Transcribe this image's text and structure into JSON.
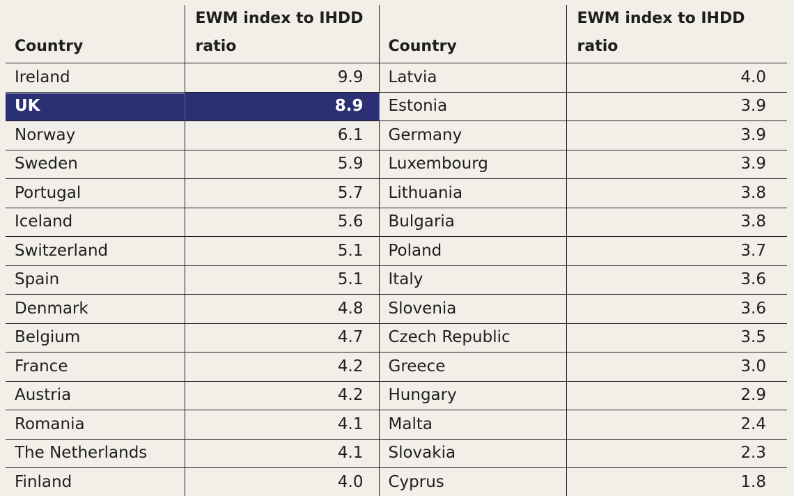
{
  "header": {
    "country_label": "Country",
    "ratio_label_line1": "EWM index to IHDD",
    "ratio_label_line2": "ratio"
  },
  "left_rows": [
    {
      "country": "Ireland",
      "value": "9.9"
    },
    {
      "country": "UK",
      "value": "8.9",
      "highlighted": true
    },
    {
      "country": "Norway",
      "value": "6.1"
    },
    {
      "country": "Sweden",
      "value": "5.9"
    },
    {
      "country": "Portugal",
      "value": "5.7"
    },
    {
      "country": "Iceland",
      "value": "5.6"
    },
    {
      "country": "Switzerland",
      "value": "5.1"
    },
    {
      "country": "Spain",
      "value": "5.1"
    },
    {
      "country": "Denmark",
      "value": "4.8"
    },
    {
      "country": "Belgium",
      "value": "4.7"
    },
    {
      "country": "France",
      "value": "4.2"
    },
    {
      "country": "Austria",
      "value": "4.2"
    },
    {
      "country": "Romania",
      "value": "4.1"
    },
    {
      "country": "The Netherlands",
      "value": "4.1"
    },
    {
      "country": "Finland",
      "value": "4.0"
    }
  ],
  "right_rows": [
    {
      "country": "Latvia",
      "value": "4.0"
    },
    {
      "country": "Estonia",
      "value": "3.9"
    },
    {
      "country": "Germany",
      "value": "3.9"
    },
    {
      "country": "Luxembourg",
      "value": "3.9"
    },
    {
      "country": "Lithuania",
      "value": "3.8"
    },
    {
      "country": "Bulgaria",
      "value": "3.8"
    },
    {
      "country": "Poland",
      "value": "3.7"
    },
    {
      "country": "Italy",
      "value": "3.6"
    },
    {
      "country": "Slovenia",
      "value": "3.6"
    },
    {
      "country": "Czech Republic",
      "value": "3.5"
    },
    {
      "country": "Greece",
      "value": "3.0"
    },
    {
      "country": "Hungary",
      "value": "2.9"
    },
    {
      "country": "Malta",
      "value": "2.4"
    },
    {
      "country": "Slovakia",
      "value": "2.3"
    },
    {
      "country": "Cyprus",
      "value": "1.8"
    }
  ],
  "colors": {
    "background": "#f2efe8",
    "highlight": "#2b2f73",
    "text": "#1e1e1e"
  }
}
